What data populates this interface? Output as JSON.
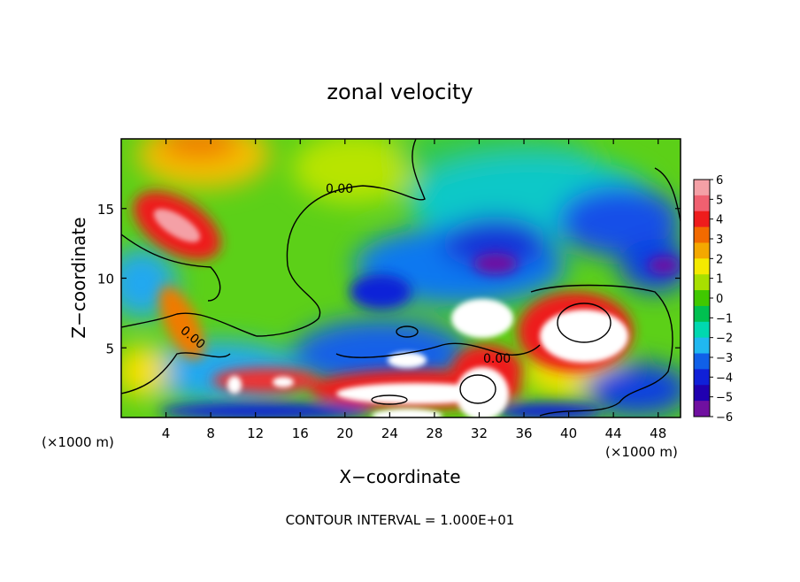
{
  "chart_data": {
    "type": "heatmap",
    "title": "zonal velocity",
    "xlabel": "X−coordinate",
    "ylabel": "Z−coordinate",
    "x_unit_left": "(×1000 m)",
    "x_unit_right": "(×1000 m)",
    "footer": "CONTOUR INTERVAL = 1.000E+01",
    "x_ticks": [
      4,
      8,
      12,
      16,
      20,
      24,
      28,
      32,
      36,
      40,
      44,
      48
    ],
    "y_ticks": [
      5,
      10,
      15
    ],
    "xlim": [
      0,
      50
    ],
    "ylim": [
      0,
      20
    ],
    "contour_label": "0.00",
    "colorbar": {
      "range": [
        -6,
        6
      ],
      "tick_labels": [
        "6",
        "5",
        "4",
        "3",
        "2",
        "1",
        "0",
        "−1",
        "−2",
        "−3",
        "−4",
        "−5",
        "−6"
      ],
      "colors": [
        "#f4a0a6",
        "#f06070",
        "#ee1c1c",
        "#f26a00",
        "#f4a800",
        "#f4ea00",
        "#a8e000",
        "#40c800",
        "#00c050",
        "#00d8b0",
        "#20b8f0",
        "#1060e8",
        "#1020d8",
        "#2000b0",
        "#7010a0"
      ]
    }
  }
}
